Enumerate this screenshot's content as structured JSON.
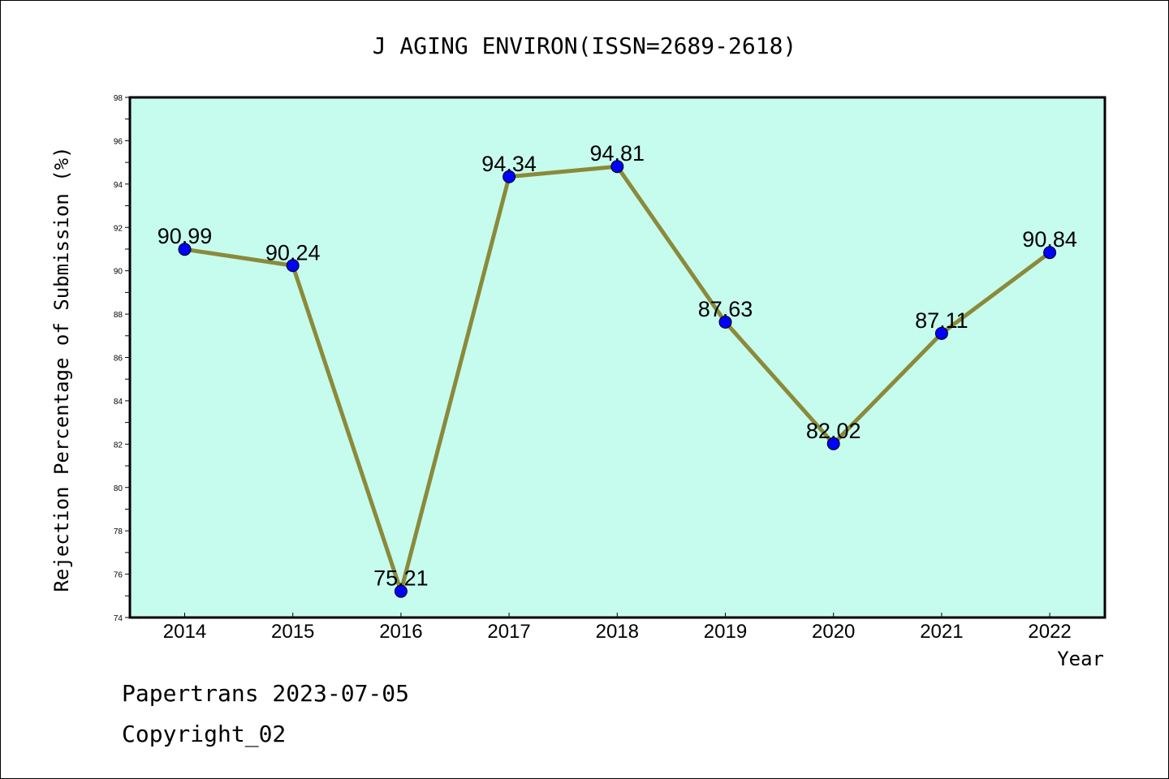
{
  "chart_data": {
    "type": "line",
    "title": "J AGING ENVIRON(ISSN=2689-2618)",
    "xlabel": "Year",
    "ylabel": "Rejection Percentage of Submission (%)",
    "categories": [
      "2014",
      "2015",
      "2016",
      "2017",
      "2018",
      "2019",
      "2020",
      "2021",
      "2022"
    ],
    "values": [
      90.99,
      90.24,
      75.21,
      94.34,
      94.81,
      87.63,
      82.02,
      87.11,
      90.84
    ],
    "data_labels": [
      "90.99",
      "90.24",
      "75.21",
      "94.34",
      "94.81",
      "87.63",
      "82.02",
      "87.11",
      "90.84"
    ],
    "ylim": [
      74,
      98
    ],
    "yticks": [
      "74",
      "76",
      "78",
      "80",
      "82",
      "84",
      "86",
      "88",
      "90",
      "92",
      "94",
      "96",
      "98"
    ],
    "grid": false,
    "colors": {
      "plot_background": "#c6fcee",
      "line": "#8b8a3a",
      "marker": "#0000ff"
    }
  },
  "footer": {
    "line1": "Papertrans 2023-07-05",
    "line2": "Copyright_02"
  }
}
